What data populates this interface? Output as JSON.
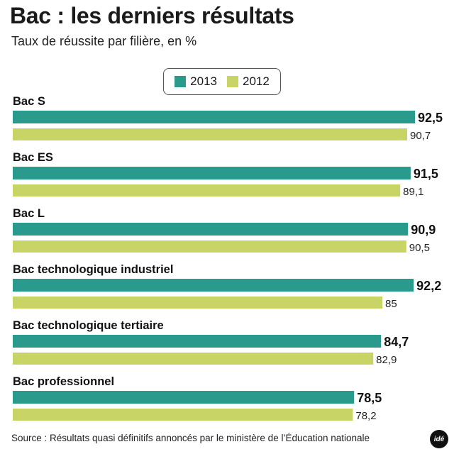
{
  "header": {
    "title": "Bac : les derniers résultats",
    "subtitle": "Taux de réussite par filière, en %"
  },
  "colors": {
    "2013": "#2a9a8c",
    "2012": "#c9d466"
  },
  "footer": {
    "source": "Source : Résultats quasi définitifs annoncés par le ministère de l’Éducation nationale",
    "logo": "idé"
  },
  "chart_data": {
    "type": "bar",
    "orientation": "horizontal",
    "title": "Bac : les derniers résultats",
    "subtitle": "Taux de réussite par filière, en %",
    "legend_position": "top-center",
    "grid": false,
    "xlim": [
      0,
      100
    ],
    "categories": [
      "Bac S",
      "Bac ES",
      "Bac L",
      "Bac technologique industriel",
      "Bac technologique tertiaire",
      "Bac professionnel"
    ],
    "series": [
      {
        "name": "2013",
        "values": [
          92.5,
          91.5,
          90.9,
          92.2,
          84.7,
          78.5
        ],
        "labels": [
          "92,5",
          "91,5",
          "90,9",
          "92,2",
          "84,7",
          "78,5"
        ]
      },
      {
        "name": "2012",
        "values": [
          90.7,
          89.1,
          90.5,
          85,
          82.9,
          78.2
        ],
        "labels": [
          "90,7",
          "89,1",
          "90,5",
          "85",
          "82,9",
          "78,2"
        ]
      }
    ]
  }
}
